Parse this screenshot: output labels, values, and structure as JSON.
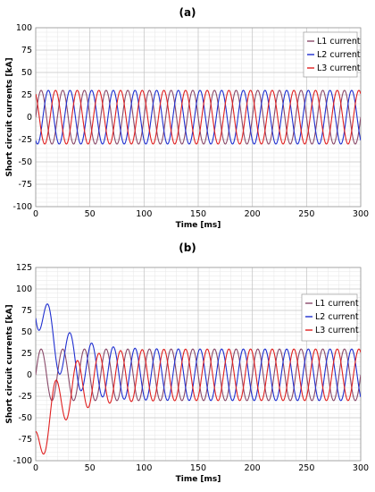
{
  "colors": {
    "L1": "#8a4a6a",
    "L2": "#1f2fd0",
    "L3": "#e02020"
  },
  "chart_data": [
    {
      "panel_label": "(a)",
      "type": "line",
      "xlabel": "Time [ms]",
      "ylabel": "Short circuit currents [kA]",
      "xlim": [
        0,
        300
      ],
      "ylim": [
        -100,
        100
      ],
      "xticks": [
        0,
        50,
        100,
        150,
        200,
        250,
        300
      ],
      "yticks": [
        -100,
        -75,
        -50,
        -25,
        0,
        25,
        50,
        75,
        100
      ],
      "grid": true,
      "legend_position": "top-right",
      "waveform": "steady-state three-phase sine, 50 Hz, no DC offset",
      "series": [
        {
          "name": "L1 current",
          "color": "#8a4a6a",
          "amplitude": 30,
          "frequency_hz": 50,
          "phase_deg": 0
        },
        {
          "name": "L2 current",
          "color": "#1f2fd0",
          "amplitude": 30,
          "frequency_hz": 50,
          "phase_deg": -120
        },
        {
          "name": "L3 current",
          "color": "#e02020",
          "amplitude": 30,
          "frequency_hz": 50,
          "phase_deg": 120
        }
      ]
    },
    {
      "panel_label": "(b)",
      "type": "line",
      "xlabel": "Time [ms]",
      "ylabel": "Short circuit currents [kA]",
      "xlim": [
        0,
        300
      ],
      "ylim": [
        -100,
        125
      ],
      "xticks": [
        0,
        50,
        100,
        150,
        200,
        250,
        300
      ],
      "yticks": [
        -100,
        -75,
        -50,
        -25,
        0,
        25,
        50,
        75,
        100,
        125
      ],
      "grid": true,
      "legend_position": "top-right",
      "waveform": "three-phase sine, 50 Hz, with decaying DC offset (time constant ~20 ms)",
      "series": [
        {
          "name": "L1 current",
          "color": "#8a4a6a",
          "amplitude": 30,
          "frequency_hz": 50,
          "phase_deg": 0,
          "dc_offset_start": 0,
          "dc_decay_ms": 20
        },
        {
          "name": "L2 current",
          "color": "#1f2fd0",
          "amplitude": 30,
          "frequency_hz": 50,
          "phase_deg": -120,
          "dc_offset_start": 92,
          "dc_decay_ms": 20
        },
        {
          "name": "L3 current",
          "color": "#e02020",
          "amplitude": 30,
          "frequency_hz": 50,
          "phase_deg": 120,
          "dc_offset_start": -92,
          "dc_decay_ms": 20
        }
      ]
    }
  ]
}
